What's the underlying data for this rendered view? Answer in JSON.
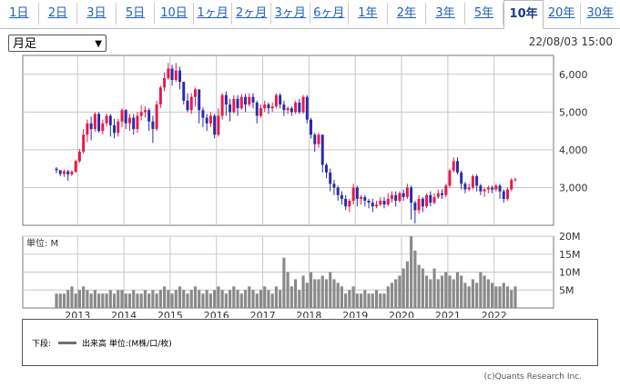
{
  "tabs": [
    "1日",
    "2日",
    "3日",
    "5日",
    "10日",
    "1ヶ月",
    "2ヶ月",
    "3ヶ月",
    "6ヶ月",
    "1年",
    "2年",
    "3年",
    "5年",
    "10年",
    "20年",
    "30年"
  ],
  "active_tab": "10年",
  "period_select": {
    "value": "月足"
  },
  "timestamp": "22/08/03 15:00",
  "colors": {
    "up": "#e8194b",
    "down": "#2b2aa8",
    "volume": "#8a8a8a",
    "grid": "#c8c8c8"
  },
  "chart_data": [
    {
      "type": "candlestick",
      "x_tick_labels": [
        "2013",
        "2014",
        "2015",
        "2016",
        "2017",
        "2018",
        "2019",
        "2020",
        "2021",
        "2022"
      ],
      "y_tick_labels": [
        "6,000",
        "5,000",
        "4,000",
        "3,000"
      ],
      "ylim": [
        2000,
        6500
      ],
      "grid": true,
      "candles": [
        [
          3500,
          3460,
          3540,
          3380
        ],
        [
          3460,
          3360,
          3460,
          3300
        ],
        [
          3360,
          3430,
          3480,
          3280
        ],
        [
          3430,
          3350,
          3470,
          3180
        ],
        [
          3350,
          3420,
          3460,
          3310
        ],
        [
          3420,
          3700,
          3740,
          3380
        ],
        [
          3700,
          3950,
          4020,
          3650
        ],
        [
          3950,
          4400,
          4550,
          3900
        ],
        [
          4400,
          4700,
          4800,
          4200
        ],
        [
          4700,
          4550,
          4880,
          4250
        ],
        [
          4550,
          4950,
          5000,
          4480
        ],
        [
          4950,
          4500,
          5000,
          4450
        ],
        [
          4500,
          4700,
          4800,
          4400
        ],
        [
          4700,
          4900,
          4960,
          4620
        ],
        [
          4900,
          4650,
          4950,
          4350
        ],
        [
          4650,
          4450,
          4820,
          4300
        ],
        [
          4450,
          4750,
          4820,
          4350
        ],
        [
          4750,
          5050,
          5100,
          4600
        ],
        [
          5050,
          4700,
          5080,
          4550
        ],
        [
          4700,
          4850,
          4950,
          4500
        ],
        [
          4850,
          4550,
          4950,
          4400
        ],
        [
          4550,
          4900,
          5000,
          4450
        ],
        [
          4900,
          5000,
          5180,
          4780
        ],
        [
          5000,
          5050,
          5150,
          4850
        ],
        [
          5050,
          4750,
          5100,
          4500
        ],
        [
          4750,
          4550,
          4900,
          4180
        ],
        [
          4550,
          5200,
          5300,
          4500
        ],
        [
          5200,
          5650,
          5700,
          5100
        ],
        [
          5650,
          5900,
          6050,
          5550
        ],
        [
          5900,
          6150,
          6300,
          5850
        ],
        [
          6150,
          5850,
          6250,
          5700
        ],
        [
          5850,
          6100,
          6300,
          5800
        ],
        [
          6100,
          5800,
          6200,
          5600
        ],
        [
          5800,
          5300,
          5800,
          5200
        ],
        [
          5300,
          5050,
          5500,
          5000
        ],
        [
          5050,
          5400,
          5500,
          4950
        ],
        [
          5400,
          5600,
          5650,
          5150
        ],
        [
          5600,
          5050,
          5600,
          4700
        ],
        [
          5050,
          4850,
          5120,
          4600
        ],
        [
          4850,
          4700,
          4950,
          4500
        ],
        [
          4700,
          4900,
          5000,
          4600
        ],
        [
          4900,
          4400,
          4950,
          4300
        ],
        [
          4400,
          4900,
          5100,
          4350
        ],
        [
          4900,
          5450,
          5500,
          4800
        ],
        [
          5450,
          5200,
          5550,
          4900
        ],
        [
          5200,
          5000,
          5350,
          4750
        ],
        [
          5000,
          5350,
          5450,
          4950
        ],
        [
          5350,
          5100,
          5450,
          4900
        ],
        [
          5100,
          5400,
          5480,
          5050
        ],
        [
          5400,
          5200,
          5480,
          5000
        ],
        [
          5200,
          5400,
          5500,
          5150
        ],
        [
          5400,
          5250,
          5500,
          5100
        ],
        [
          5250,
          4900,
          5300,
          4700
        ],
        [
          4900,
          5100,
          5200,
          4850
        ],
        [
          5100,
          5200,
          5300,
          5000
        ],
        [
          5200,
          5100,
          5250,
          4950
        ],
        [
          5100,
          5150,
          5250,
          5000
        ],
        [
          5150,
          5450,
          5500,
          5100
        ],
        [
          5450,
          5200,
          5500,
          5100
        ],
        [
          5200,
          5050,
          5300,
          4900
        ],
        [
          5050,
          5100,
          5150,
          4950
        ],
        [
          5100,
          5000,
          5150,
          4900
        ],
        [
          5000,
          5250,
          5300,
          4950
        ],
        [
          5250,
          5000,
          5350,
          4950
        ],
        [
          5000,
          5400,
          5450,
          4950
        ],
        [
          5400,
          4800,
          5450,
          4700
        ],
        [
          4800,
          4400,
          4850,
          4300
        ],
        [
          4400,
          4150,
          4450,
          3950
        ],
        [
          4150,
          4400,
          4450,
          4050
        ],
        [
          4400,
          3600,
          4400,
          3400
        ],
        [
          3600,
          3400,
          3650,
          3250
        ],
        [
          3400,
          3100,
          3500,
          2900
        ],
        [
          3100,
          3000,
          3200,
          2800
        ],
        [
          3000,
          2800,
          3050,
          2650
        ],
        [
          2800,
          2700,
          2900,
          2550
        ],
        [
          2700,
          2500,
          2800,
          2400
        ],
        [
          2500,
          2650,
          2700,
          2350
        ],
        [
          2650,
          3000,
          3100,
          2550
        ],
        [
          3000,
          2700,
          3050,
          2500
        ],
        [
          2700,
          2750,
          2800,
          2550
        ],
        [
          2750,
          2650,
          2800,
          2500
        ],
        [
          2650,
          2600,
          2700,
          2450
        ],
        [
          2600,
          2500,
          2700,
          2350
        ],
        [
          2500,
          2550,
          2650,
          2450
        ],
        [
          2550,
          2650,
          2750,
          2500
        ],
        [
          2650,
          2550,
          2750,
          2450
        ],
        [
          2550,
          2700,
          2850,
          2500
        ],
        [
          2700,
          2800,
          2900,
          2600
        ],
        [
          2800,
          2650,
          2900,
          2500
        ],
        [
          2650,
          2850,
          2900,
          2600
        ],
        [
          2850,
          2750,
          2950,
          2650
        ],
        [
          2750,
          3000,
          3100,
          2700
        ],
        [
          3000,
          2600,
          3050,
          2150
        ],
        [
          2600,
          2400,
          2650,
          2050
        ],
        [
          2400,
          2700,
          2800,
          2300
        ],
        [
          2700,
          2500,
          2750,
          2350
        ],
        [
          2500,
          2800,
          2850,
          2450
        ],
        [
          2800,
          2600,
          2900,
          2500
        ],
        [
          2600,
          2750,
          2850,
          2550
        ],
        [
          2750,
          2850,
          2950,
          2700
        ],
        [
          2850,
          2800,
          2950,
          2700
        ],
        [
          2800,
          3050,
          3100,
          2750
        ],
        [
          3050,
          3450,
          3500,
          3000
        ],
        [
          3450,
          3700,
          3800,
          3400
        ],
        [
          3700,
          3400,
          3800,
          3350
        ],
        [
          3400,
          3100,
          3450,
          2950
        ],
        [
          3100,
          2950,
          3150,
          2850
        ],
        [
          2950,
          3000,
          3100,
          2900
        ],
        [
          3000,
          3300,
          3350,
          2950
        ],
        [
          3300,
          3050,
          3350,
          2900
        ],
        [
          3050,
          2900,
          3100,
          2800
        ],
        [
          2900,
          2950,
          3000,
          2750
        ],
        [
          2950,
          3000,
          3050,
          2850
        ],
        [
          3000,
          2950,
          3050,
          2850
        ],
        [
          2950,
          3050,
          3100,
          2900
        ],
        [
          3050,
          2900,
          3100,
          2700
        ],
        [
          2900,
          2700,
          2950,
          2600
        ],
        [
          2700,
          2950,
          3000,
          2650
        ],
        [
          2950,
          3200,
          3250,
          2900
        ],
        [
          3200,
          3220,
          3260,
          3150
        ]
      ],
      "volume_tick_labels": [
        "20M",
        "15M",
        "10M",
        "5M"
      ],
      "volume_ylim": [
        0,
        20
      ],
      "volume_axis_label": "単位: M",
      "volume": [
        4,
        4,
        4,
        5,
        6,
        4,
        5,
        6,
        5,
        4,
        5,
        4,
        4,
        4,
        5,
        4,
        5,
        5,
        4,
        4,
        5,
        4,
        4,
        5,
        4,
        5,
        4,
        5,
        6,
        5,
        4,
        5,
        6,
        5,
        4,
        5,
        6,
        5,
        4,
        5,
        4,
        5,
        6,
        5,
        4,
        5,
        6,
        5,
        4,
        5,
        6,
        5,
        4,
        5,
        6,
        5,
        4,
        6,
        5,
        14,
        10,
        6,
        8,
        5,
        9,
        7,
        10,
        8,
        8,
        9,
        8,
        10,
        8,
        7,
        6,
        4,
        5,
        6,
        4,
        4,
        5,
        4,
        4,
        5,
        4,
        4,
        6,
        7,
        8,
        9,
        11,
        13,
        20,
        16,
        12,
        11,
        9,
        8,
        11,
        8,
        9,
        10,
        9,
        8,
        10,
        9,
        7,
        6,
        8,
        7,
        10,
        9,
        8,
        7,
        6,
        6,
        7,
        6,
        5,
        6
      ]
    }
  ],
  "legend": {
    "label": "下段:",
    "text": "出来高 単位:(M株/口/枚)"
  },
  "copyright": "(c)Quants Research Inc."
}
